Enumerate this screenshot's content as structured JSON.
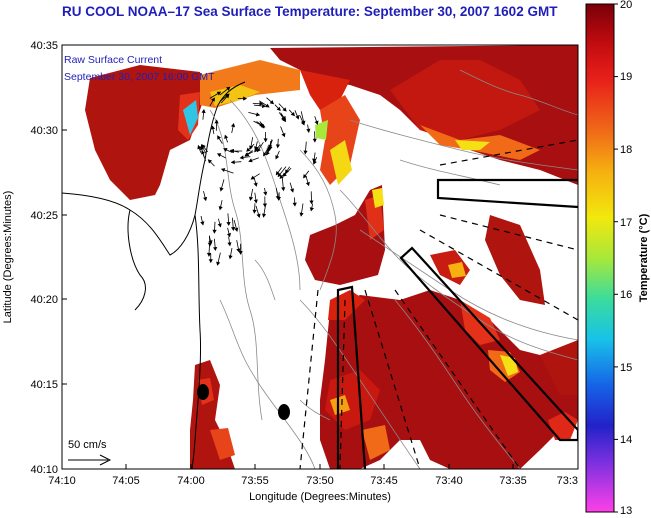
{
  "title": "RU COOL  NOAA–17  Sea Surface Temperature:  September 30, 2007 1602 GMT",
  "current_label": {
    "line1": "Raw Surface Current",
    "line2": "September 30, 2007 16:00 GMT"
  },
  "scale_label": "50 cm/s",
  "axes": {
    "x_title": "Longitude (Degrees:Minutes)",
    "y_title": "Latitude (Degrees:Minutes)",
    "x_ticks": [
      "74:10",
      "74:05",
      "74:00",
      "73:55",
      "73:50",
      "73:45",
      "73:40",
      "73:35",
      "73:3"
    ],
    "y_ticks": [
      "40:35",
      "40:30",
      "40:25",
      "40:20",
      "40:15",
      "40:10"
    ]
  },
  "colorbar": {
    "title": "Temperature (°C)",
    "min": 13,
    "max": 20,
    "ticks": [
      "20",
      "19",
      "18",
      "17",
      "16",
      "15",
      "14",
      "13"
    ]
  },
  "colors": {
    "title_text": "#1f1fb8",
    "sst_warm": "#a30d0d",
    "sst_mid": "#d8220e",
    "sst_orange": "#f0701a",
    "sst_yellow": "#f5e10e"
  },
  "icons": [
    "current-vector-arrow",
    "buoy-marker"
  ]
}
